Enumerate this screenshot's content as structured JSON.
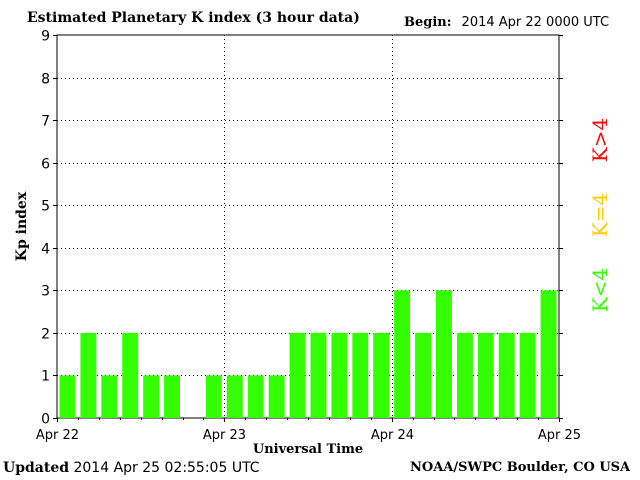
{
  "header": {
    "title": "Estimated Planetary K index (3 hour data)",
    "begin_label": "Begin:",
    "begin_value": "2014 Apr 22 0000 UTC"
  },
  "footer": {
    "updated_label": "Updated",
    "updated_value": "2014 Apr 25 02:55:05 UTC",
    "source": "NOAA/SWPC Boulder, CO USA"
  },
  "legend": {
    "items": [
      {
        "label": "K>4",
        "color": "#ff0000"
      },
      {
        "label": "K=4",
        "color": "#ffcc00"
      },
      {
        "label": "K<4",
        "color": "#33ff00"
      }
    ]
  },
  "chart_data": {
    "type": "bar",
    "title": "Estimated Planetary K index (3 hour data)",
    "xlabel": "Universal Time",
    "ylabel": "Kp index",
    "ylim": [
      0,
      9
    ],
    "yticks": [
      0,
      1,
      2,
      3,
      4,
      5,
      6,
      7,
      8,
      9
    ],
    "xticks": [
      "Apr 22",
      "Apr 23",
      "Apr 24",
      "Apr 25"
    ],
    "bin_hours": 3,
    "values": [
      1,
      2,
      1,
      2,
      1,
      1,
      0,
      1,
      1,
      1,
      1,
      2,
      2,
      2,
      2,
      2,
      3,
      2,
      3,
      2,
      2,
      2,
      2,
      3
    ],
    "bar_color": "#33ff00",
    "grid": "dotted"
  }
}
